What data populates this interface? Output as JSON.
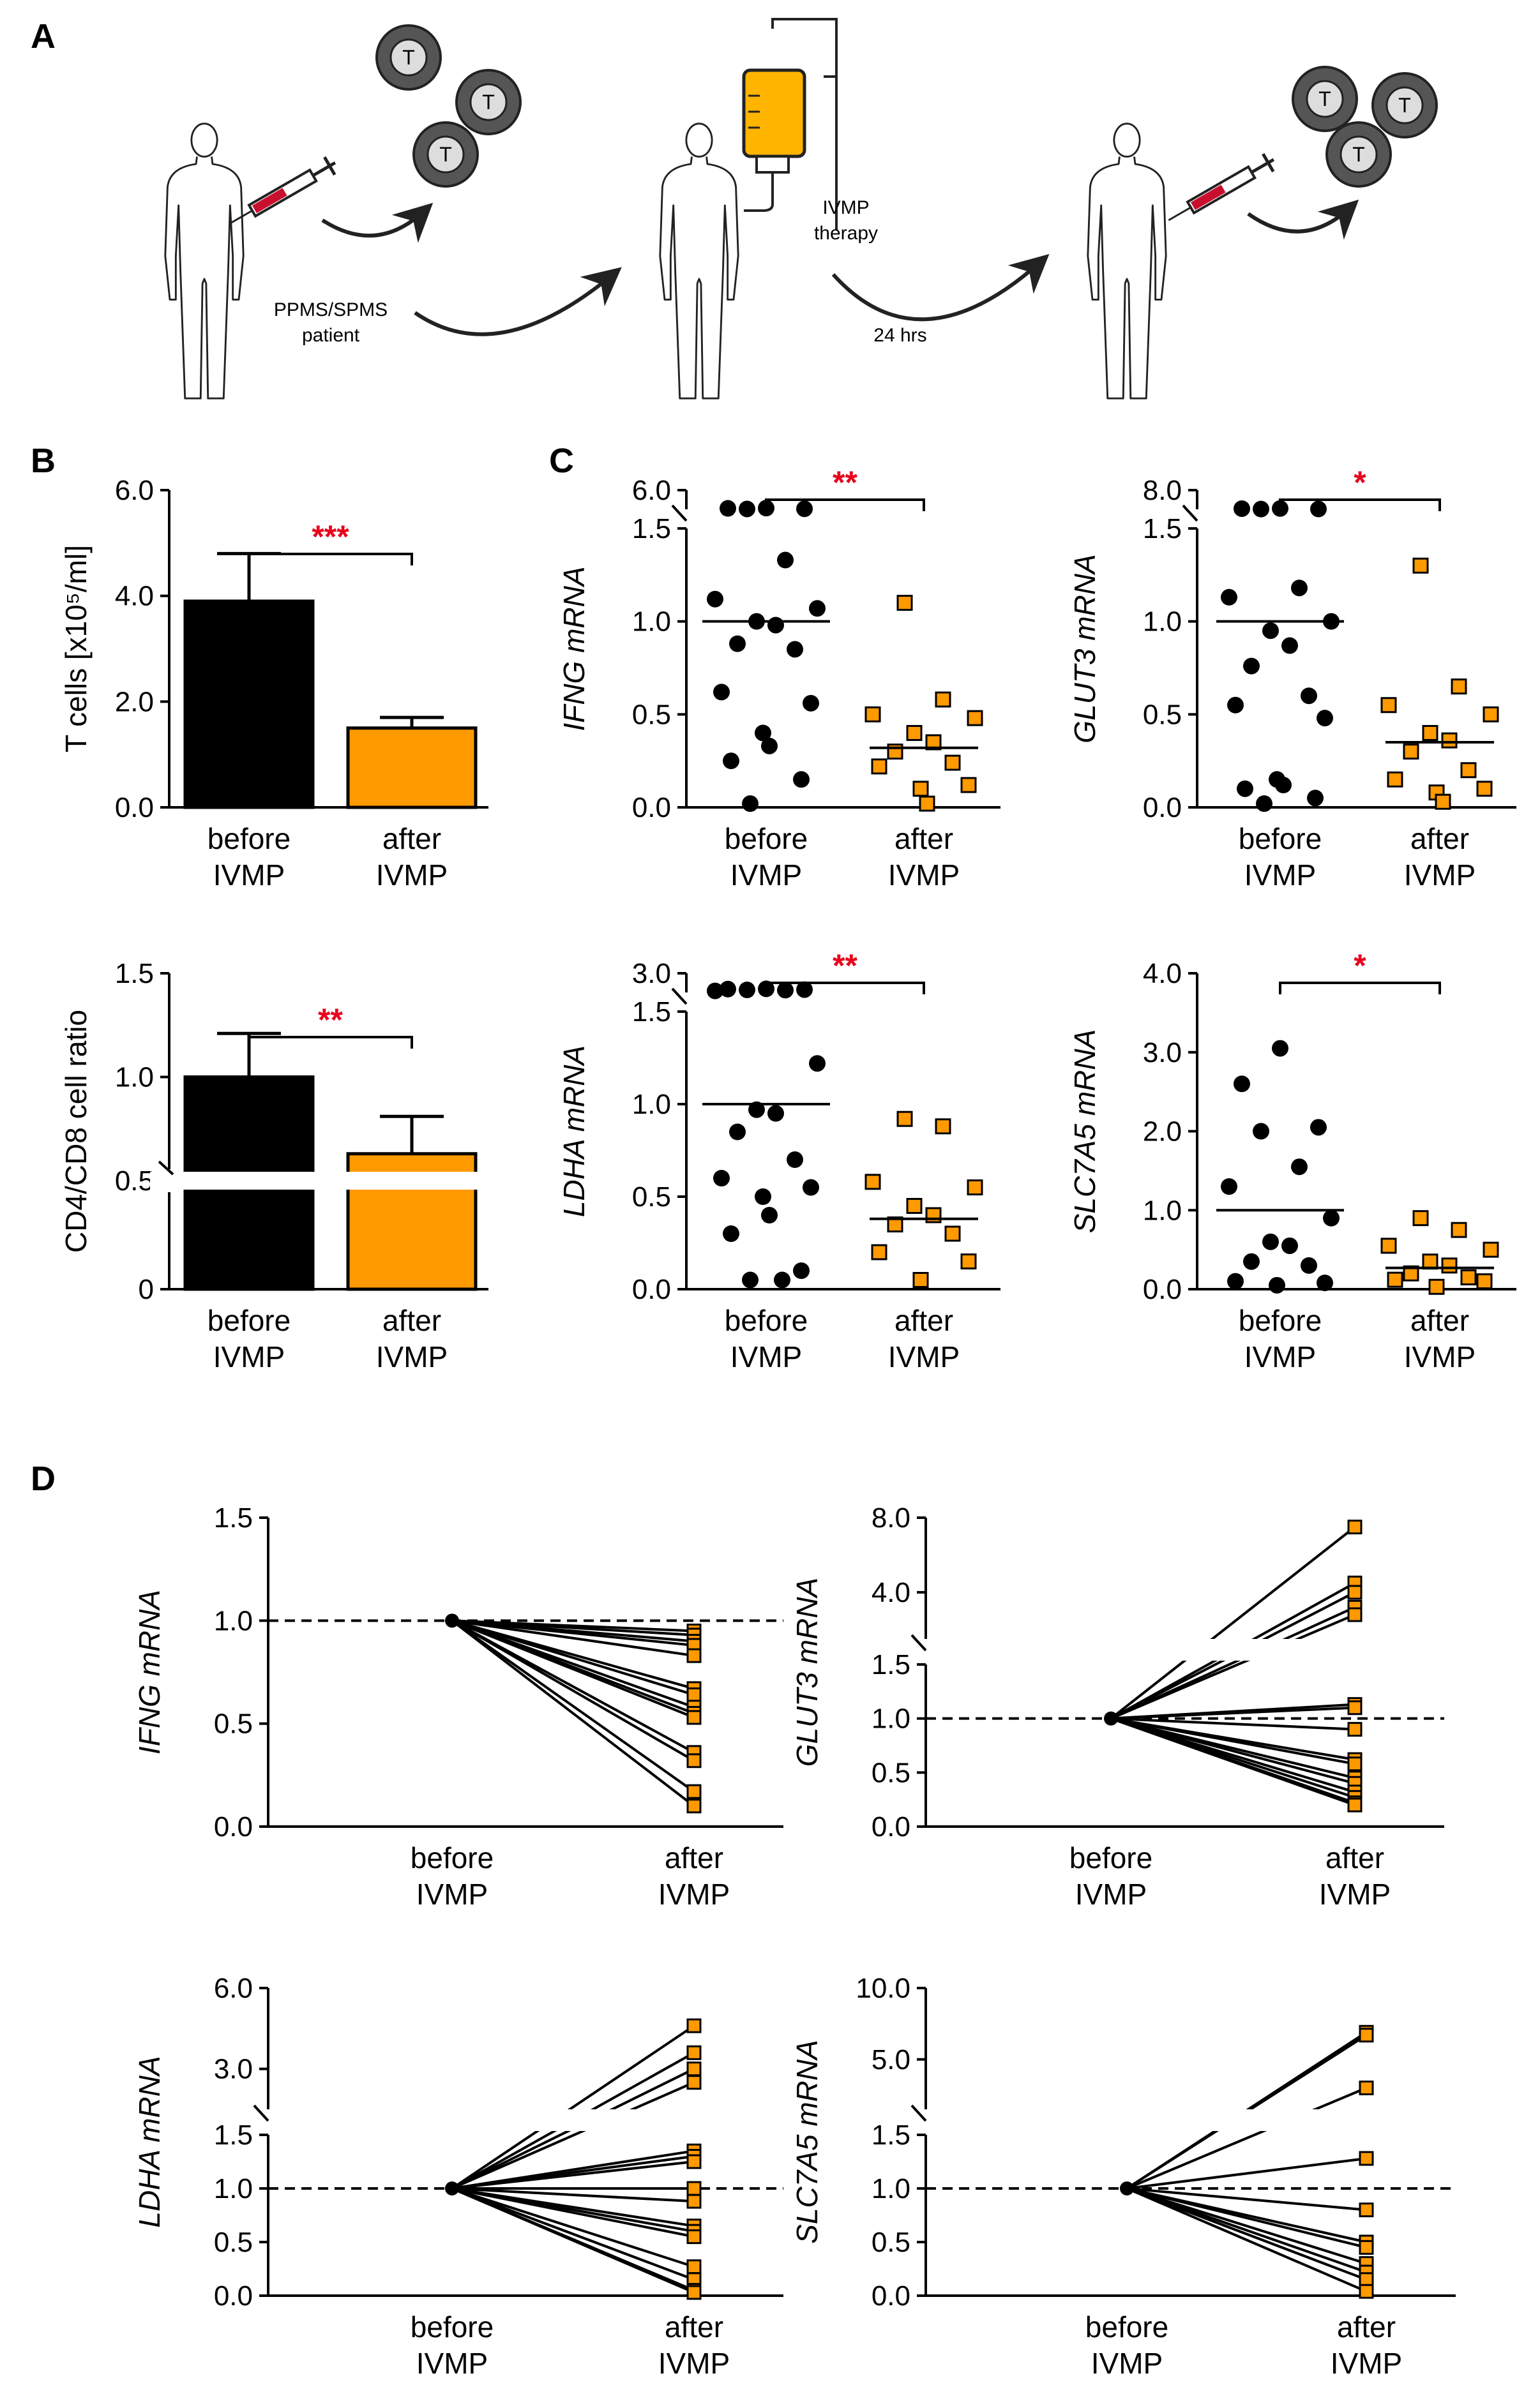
{
  "panel_letters": {
    "A": "A",
    "B": "B",
    "C": "C",
    "D": "D"
  },
  "schematic": {
    "cell_label": "T",
    "patient_label_line1": "PPMS/SPMS",
    "patient_label_line2": "patient",
    "therapy_line1": "IVMP",
    "therapy_line2": "therapy",
    "interval": "24 hrs"
  },
  "colors": {
    "before": "#000000",
    "after": "#ff9900",
    "sig": "#e8001c",
    "blood": "#c8102e",
    "iv_bag": "#ffb400"
  },
  "chart_data": [
    {
      "id": "B1",
      "type": "bar",
      "ylabel": "T cells [x10⁵/ml]",
      "categories": [
        [
          "before",
          "IVMP"
        ],
        [
          "after",
          "IVMP"
        ]
      ],
      "values": [
        3.9,
        1.5
      ],
      "errors": [
        0.9,
        0.2
      ],
      "ylim": [
        0,
        6.0
      ],
      "yticks": [
        "0.0",
        "2.0",
        "4.0",
        "6.0"
      ],
      "significance": "***"
    },
    {
      "id": "B2",
      "type": "bar",
      "ylabel": "CD4/CD8 cell ratio",
      "categories": [
        [
          "before",
          "IVMP"
        ],
        [
          "after",
          "IVMP"
        ]
      ],
      "values": [
        1.0,
        0.63
      ],
      "errors": [
        0.21,
        0.18
      ],
      "ylim": [
        0,
        1.5
      ],
      "axis_break": [
        0,
        0.5
      ],
      "yticks": [
        "0",
        "0.5",
        "1.0",
        "1.5"
      ],
      "significance": "**"
    },
    {
      "id": "C1",
      "type": "scatter",
      "ylabel": "IFNG mRNA",
      "categories": [
        [
          "before",
          "IVMP"
        ],
        [
          "after",
          "IVMP"
        ]
      ],
      "broken_axis": {
        "lower_max": 1.5,
        "upper_max": 6.0
      },
      "yticks_lower": [
        "0.0",
        "0.5",
        "1.0",
        "1.5"
      ],
      "ytick_upper": "6.0",
      "before": [
        1.78,
        1.72,
        1.62,
        1.58,
        1.33,
        1.12,
        1.07,
        1.0,
        0.98,
        0.88,
        0.85,
        0.62,
        0.56,
        0.4,
        0.33,
        0.25,
        0.15,
        0.02
      ],
      "after": [
        1.1,
        0.58,
        0.5,
        0.48,
        0.4,
        0.35,
        0.3,
        0.24,
        0.22,
        0.12,
        0.1,
        0.02
      ],
      "mean_before": 1.0,
      "mean_after": 0.32,
      "significance": "**"
    },
    {
      "id": "C2",
      "type": "scatter",
      "ylabel": "GLUT3 mRNA",
      "categories": [
        [
          "before",
          "IVMP"
        ],
        [
          "after",
          "IVMP"
        ]
      ],
      "broken_axis": {
        "lower_max": 1.5,
        "upper_max": 8.0
      },
      "yticks_lower": [
        "0.0",
        "0.5",
        "1.0",
        "1.5"
      ],
      "ytick_upper": "8.0",
      "before": [
        1.78,
        1.72,
        1.6,
        1.58,
        1.18,
        1.13,
        1.0,
        0.95,
        0.87,
        0.76,
        0.6,
        0.55,
        0.48,
        0.15,
        0.12,
        0.1,
        0.05,
        0.02
      ],
      "after": [
        1.3,
        0.65,
        0.55,
        0.5,
        0.4,
        0.36,
        0.3,
        0.2,
        0.15,
        0.1,
        0.08,
        0.03
      ],
      "mean_before": 1.0,
      "mean_after": 0.35,
      "significance": "*"
    },
    {
      "id": "C3",
      "type": "scatter",
      "ylabel": "LDHA mRNA",
      "categories": [
        [
          "before",
          "IVMP"
        ],
        [
          "after",
          "IVMP"
        ]
      ],
      "broken_axis": {
        "lower_max": 1.5,
        "upper_max": 3.0
      },
      "yticks_lower": [
        "0.0",
        "0.5",
        "1.0",
        "1.5"
      ],
      "ytick_upper": "3.0",
      "before": [
        1.78,
        1.76,
        1.72,
        1.7,
        1.68,
        1.62,
        1.22,
        0.97,
        0.95,
        0.85,
        0.7,
        0.6,
        0.55,
        0.5,
        0.4,
        0.3,
        0.1,
        0.05,
        0.05
      ],
      "after": [
        0.92,
        0.88,
        0.58,
        0.55,
        0.45,
        0.4,
        0.35,
        0.3,
        0.2,
        0.15,
        0.05
      ],
      "mean_before": 1.0,
      "mean_after": 0.38,
      "significance": "**"
    },
    {
      "id": "C4",
      "type": "scatter",
      "ylabel": "SLC7A5 mRNA",
      "categories": [
        [
          "before",
          "IVMP"
        ],
        [
          "after",
          "IVMP"
        ]
      ],
      "ylim": [
        0,
        4.0
      ],
      "yticks": [
        "0.0",
        "1.0",
        "2.0",
        "3.0",
        "4.0"
      ],
      "before": [
        3.05,
        2.6,
        2.05,
        2.0,
        1.55,
        1.3,
        0.9,
        0.6,
        0.55,
        0.35,
        0.3,
        0.1,
        0.08,
        0.05
      ],
      "after": [
        0.9,
        0.75,
        0.55,
        0.5,
        0.35,
        0.3,
        0.2,
        0.15,
        0.12,
        0.1,
        0.03
      ],
      "mean_before": 1.0,
      "mean_after": 0.27,
      "significance": "*"
    },
    {
      "id": "D1",
      "type": "line",
      "ylabel": "IFNG mRNA",
      "categories": [
        [
          "before",
          "IVMP"
        ],
        [
          "after",
          "IVMP"
        ]
      ],
      "ylim": [
        0,
        1.5
      ],
      "yticks": [
        "0.0",
        "0.5",
        "1.0",
        "1.5"
      ],
      "reference": 1.0,
      "after": [
        0.95,
        0.93,
        0.9,
        0.88,
        0.83,
        0.67,
        0.64,
        0.58,
        0.55,
        0.53,
        0.36,
        0.32,
        0.17,
        0.1
      ]
    },
    {
      "id": "D2",
      "type": "line",
      "ylabel": "GLUT3 mRNA",
      "categories": [
        [
          "before",
          "IVMP"
        ],
        [
          "after",
          "IVMP"
        ]
      ],
      "broken_axis": {
        "lower_max": 1.5,
        "upper_ticks": [
          "4.0",
          "8.0"
        ]
      },
      "yticks_lower": [
        "0.0",
        "0.5",
        "1.0",
        "1.5"
      ],
      "reference": 1.0,
      "after": [
        7.5,
        4.5,
        4.0,
        3.2,
        2.8,
        1.13,
        1.1,
        0.9,
        0.62,
        0.58,
        0.45,
        0.4,
        0.32,
        0.27,
        0.22,
        0.2
      ]
    },
    {
      "id": "D3",
      "type": "line",
      "ylabel": "LDHA mRNA",
      "categories": [
        [
          "before",
          "IVMP"
        ],
        [
          "after",
          "IVMP"
        ]
      ],
      "broken_axis": {
        "lower_max": 1.5,
        "upper_ticks": [
          "3.0",
          "6.0"
        ]
      },
      "yticks_lower": [
        "0.0",
        "0.5",
        "1.0",
        "1.5"
      ],
      "reference": 1.0,
      "after": [
        4.6,
        3.6,
        3.0,
        2.5,
        1.35,
        1.3,
        1.25,
        1.0,
        0.88,
        0.65,
        0.6,
        0.55,
        0.27,
        0.15,
        0.05,
        0.03
      ]
    },
    {
      "id": "D4",
      "type": "line",
      "ylabel": "SLC7A5 mRNA",
      "categories": [
        [
          "before",
          "IVMP"
        ],
        [
          "after",
          "IVMP"
        ]
      ],
      "broken_axis": {
        "lower_max": 1.5,
        "upper_ticks": [
          "5.0",
          "10.0"
        ]
      },
      "yticks_lower": [
        "0.0",
        "0.5",
        "1.0",
        "1.5"
      ],
      "reference": 1.0,
      "after": [
        6.9,
        6.7,
        3.0,
        1.28,
        0.8,
        0.5,
        0.45,
        0.3,
        0.22,
        0.15,
        0.04
      ]
    }
  ]
}
